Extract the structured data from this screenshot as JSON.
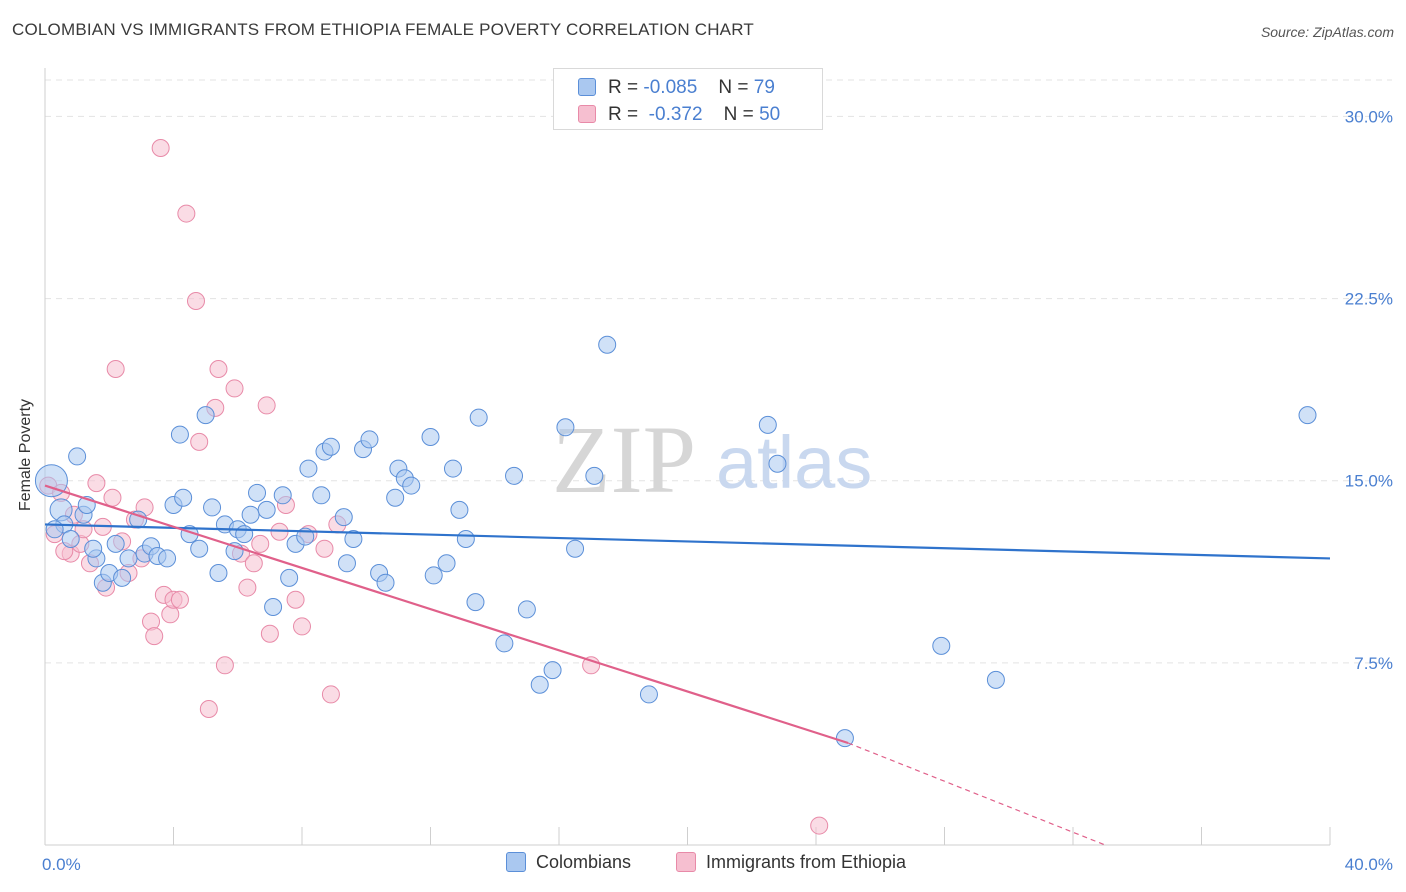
{
  "chart_data": {
    "type": "scatter",
    "title": "COLOMBIAN VS IMMIGRANTS FROM ETHIOPIA FEMALE POVERTY CORRELATION CHART",
    "source": "Source: ZipAtlas.com",
    "xlabel": "",
    "ylabel": "Female Poverty",
    "xlim": [
      0,
      40
    ],
    "ylim": [
      0,
      31.5
    ],
    "x_tick_labels": [
      "0.0%",
      "40.0%"
    ],
    "y_ticks": [
      7.5,
      15.0,
      22.5,
      30.0
    ],
    "y_tick_labels": [
      "7.5%",
      "15.0%",
      "22.5%",
      "30.0%"
    ],
    "grid": true,
    "watermark": {
      "zip": "ZIP",
      "atlas": "atlas"
    },
    "legend": {
      "placement": "top-center",
      "entries": [
        {
          "r_label": "R =",
          "r_value": "-0.085",
          "n_label": "N =",
          "n_value": "79"
        },
        {
          "r_label": "R =",
          "r_value": "-0.372",
          "n_label": "N =",
          "n_value": "50"
        }
      ]
    },
    "colors": {
      "blue_fill": "#aac8f0",
      "blue_stroke": "#5b8fd8",
      "blue_line": "#2f73cc",
      "pink_fill": "#f6bfd0",
      "pink_stroke": "#e88aa8",
      "pink_line": "#e0608a",
      "tick_text": "#4a7fd0",
      "grid": "#e3e3e3"
    },
    "series": [
      {
        "name": "Colombians",
        "trend": {
          "x0": 0,
          "y0": 13.2,
          "x1": 40,
          "y1": 11.8
        },
        "points": [
          [
            0.2,
            15.0
          ],
          [
            0.5,
            13.8
          ],
          [
            0.6,
            13.2
          ],
          [
            0.8,
            12.6
          ],
          [
            1.0,
            16.0
          ],
          [
            1.2,
            13.6
          ],
          [
            1.3,
            14.0
          ],
          [
            1.6,
            11.8
          ],
          [
            1.8,
            10.8
          ],
          [
            2.0,
            11.2
          ],
          [
            2.2,
            12.4
          ],
          [
            2.4,
            11.0
          ],
          [
            2.6,
            11.8
          ],
          [
            2.9,
            13.4
          ],
          [
            3.1,
            12.0
          ],
          [
            3.3,
            12.3
          ],
          [
            3.5,
            11.9
          ],
          [
            3.8,
            11.8
          ],
          [
            4.0,
            14.0
          ],
          [
            4.2,
            16.9
          ],
          [
            4.3,
            14.3
          ],
          [
            4.5,
            12.8
          ],
          [
            4.8,
            12.2
          ],
          [
            5.0,
            17.7
          ],
          [
            5.2,
            13.9
          ],
          [
            5.4,
            11.2
          ],
          [
            5.6,
            13.2
          ],
          [
            5.9,
            12.1
          ],
          [
            6.0,
            13.0
          ],
          [
            6.2,
            12.8
          ],
          [
            6.4,
            13.6
          ],
          [
            6.6,
            14.5
          ],
          [
            6.9,
            13.8
          ],
          [
            7.1,
            9.8
          ],
          [
            7.4,
            14.4
          ],
          [
            7.6,
            11.0
          ],
          [
            7.8,
            12.4
          ],
          [
            8.1,
            12.7
          ],
          [
            8.2,
            15.5
          ],
          [
            8.6,
            14.4
          ],
          [
            8.7,
            16.2
          ],
          [
            8.9,
            16.4
          ],
          [
            9.3,
            13.5
          ],
          [
            9.4,
            11.6
          ],
          [
            9.6,
            12.6
          ],
          [
            9.9,
            16.3
          ],
          [
            10.1,
            16.7
          ],
          [
            10.4,
            11.2
          ],
          [
            10.6,
            10.8
          ],
          [
            10.9,
            14.3
          ],
          [
            11.0,
            15.5
          ],
          [
            11.2,
            15.1
          ],
          [
            11.4,
            14.8
          ],
          [
            12.0,
            16.8
          ],
          [
            12.1,
            11.1
          ],
          [
            12.5,
            11.6
          ],
          [
            12.7,
            15.5
          ],
          [
            12.9,
            13.8
          ],
          [
            13.1,
            12.6
          ],
          [
            13.4,
            10.0
          ],
          [
            13.5,
            17.6
          ],
          [
            14.3,
            8.3
          ],
          [
            14.6,
            15.2
          ],
          [
            15.0,
            9.7
          ],
          [
            15.4,
            6.6
          ],
          [
            15.8,
            7.2
          ],
          [
            16.2,
            17.2
          ],
          [
            16.5,
            12.2
          ],
          [
            17.1,
            15.2
          ],
          [
            17.5,
            20.6
          ],
          [
            18.8,
            6.2
          ],
          [
            22.5,
            17.3
          ],
          [
            22.8,
            15.7
          ],
          [
            24.9,
            4.4
          ],
          [
            27.9,
            8.2
          ],
          [
            29.6,
            6.8
          ],
          [
            39.3,
            17.7
          ],
          [
            0.3,
            13.0
          ],
          [
            1.5,
            12.2
          ]
        ]
      },
      {
        "name": "Immigrants from Ethiopia",
        "trend": {
          "x0": 0,
          "y0": 14.8,
          "x1": 25.0,
          "y1": 4.2
        },
        "trend_dashed": {
          "x0": 25.0,
          "y0": 4.2,
          "x1": 33.0,
          "y1": 0.0
        },
        "points": [
          [
            0.1,
            14.8
          ],
          [
            0.3,
            12.8
          ],
          [
            0.5,
            14.5
          ],
          [
            0.8,
            12.0
          ],
          [
            0.9,
            13.6
          ],
          [
            1.1,
            12.4
          ],
          [
            1.2,
            13.0
          ],
          [
            1.4,
            11.6
          ],
          [
            1.6,
            14.9
          ],
          [
            1.8,
            13.1
          ],
          [
            1.9,
            10.6
          ],
          [
            2.1,
            14.3
          ],
          [
            2.2,
            19.6
          ],
          [
            2.4,
            12.5
          ],
          [
            2.6,
            11.2
          ],
          [
            2.8,
            13.4
          ],
          [
            3.0,
            11.8
          ],
          [
            3.1,
            13.9
          ],
          [
            3.3,
            9.2
          ],
          [
            3.4,
            8.6
          ],
          [
            3.7,
            10.3
          ],
          [
            3.9,
            9.5
          ],
          [
            4.0,
            10.1
          ],
          [
            4.2,
            10.1
          ],
          [
            4.4,
            26.0
          ],
          [
            4.7,
            22.4
          ],
          [
            4.8,
            16.6
          ],
          [
            5.1,
            5.6
          ],
          [
            5.4,
            19.6
          ],
          [
            5.6,
            7.4
          ],
          [
            5.3,
            18.0
          ],
          [
            5.9,
            18.8
          ],
          [
            6.1,
            12.0
          ],
          [
            6.3,
            10.6
          ],
          [
            6.5,
            11.6
          ],
          [
            6.7,
            12.4
          ],
          [
            6.9,
            18.1
          ],
          [
            7.0,
            8.7
          ],
          [
            7.3,
            12.9
          ],
          [
            7.5,
            14.0
          ],
          [
            7.8,
            10.1
          ],
          [
            8.0,
            9.0
          ],
          [
            8.2,
            12.8
          ],
          [
            8.7,
            12.2
          ],
          [
            8.9,
            6.2
          ],
          [
            9.1,
            13.2
          ],
          [
            3.6,
            28.7
          ],
          [
            17.0,
            7.4
          ],
          [
            24.1,
            0.8
          ],
          [
            0.6,
            12.1
          ]
        ]
      }
    ]
  }
}
